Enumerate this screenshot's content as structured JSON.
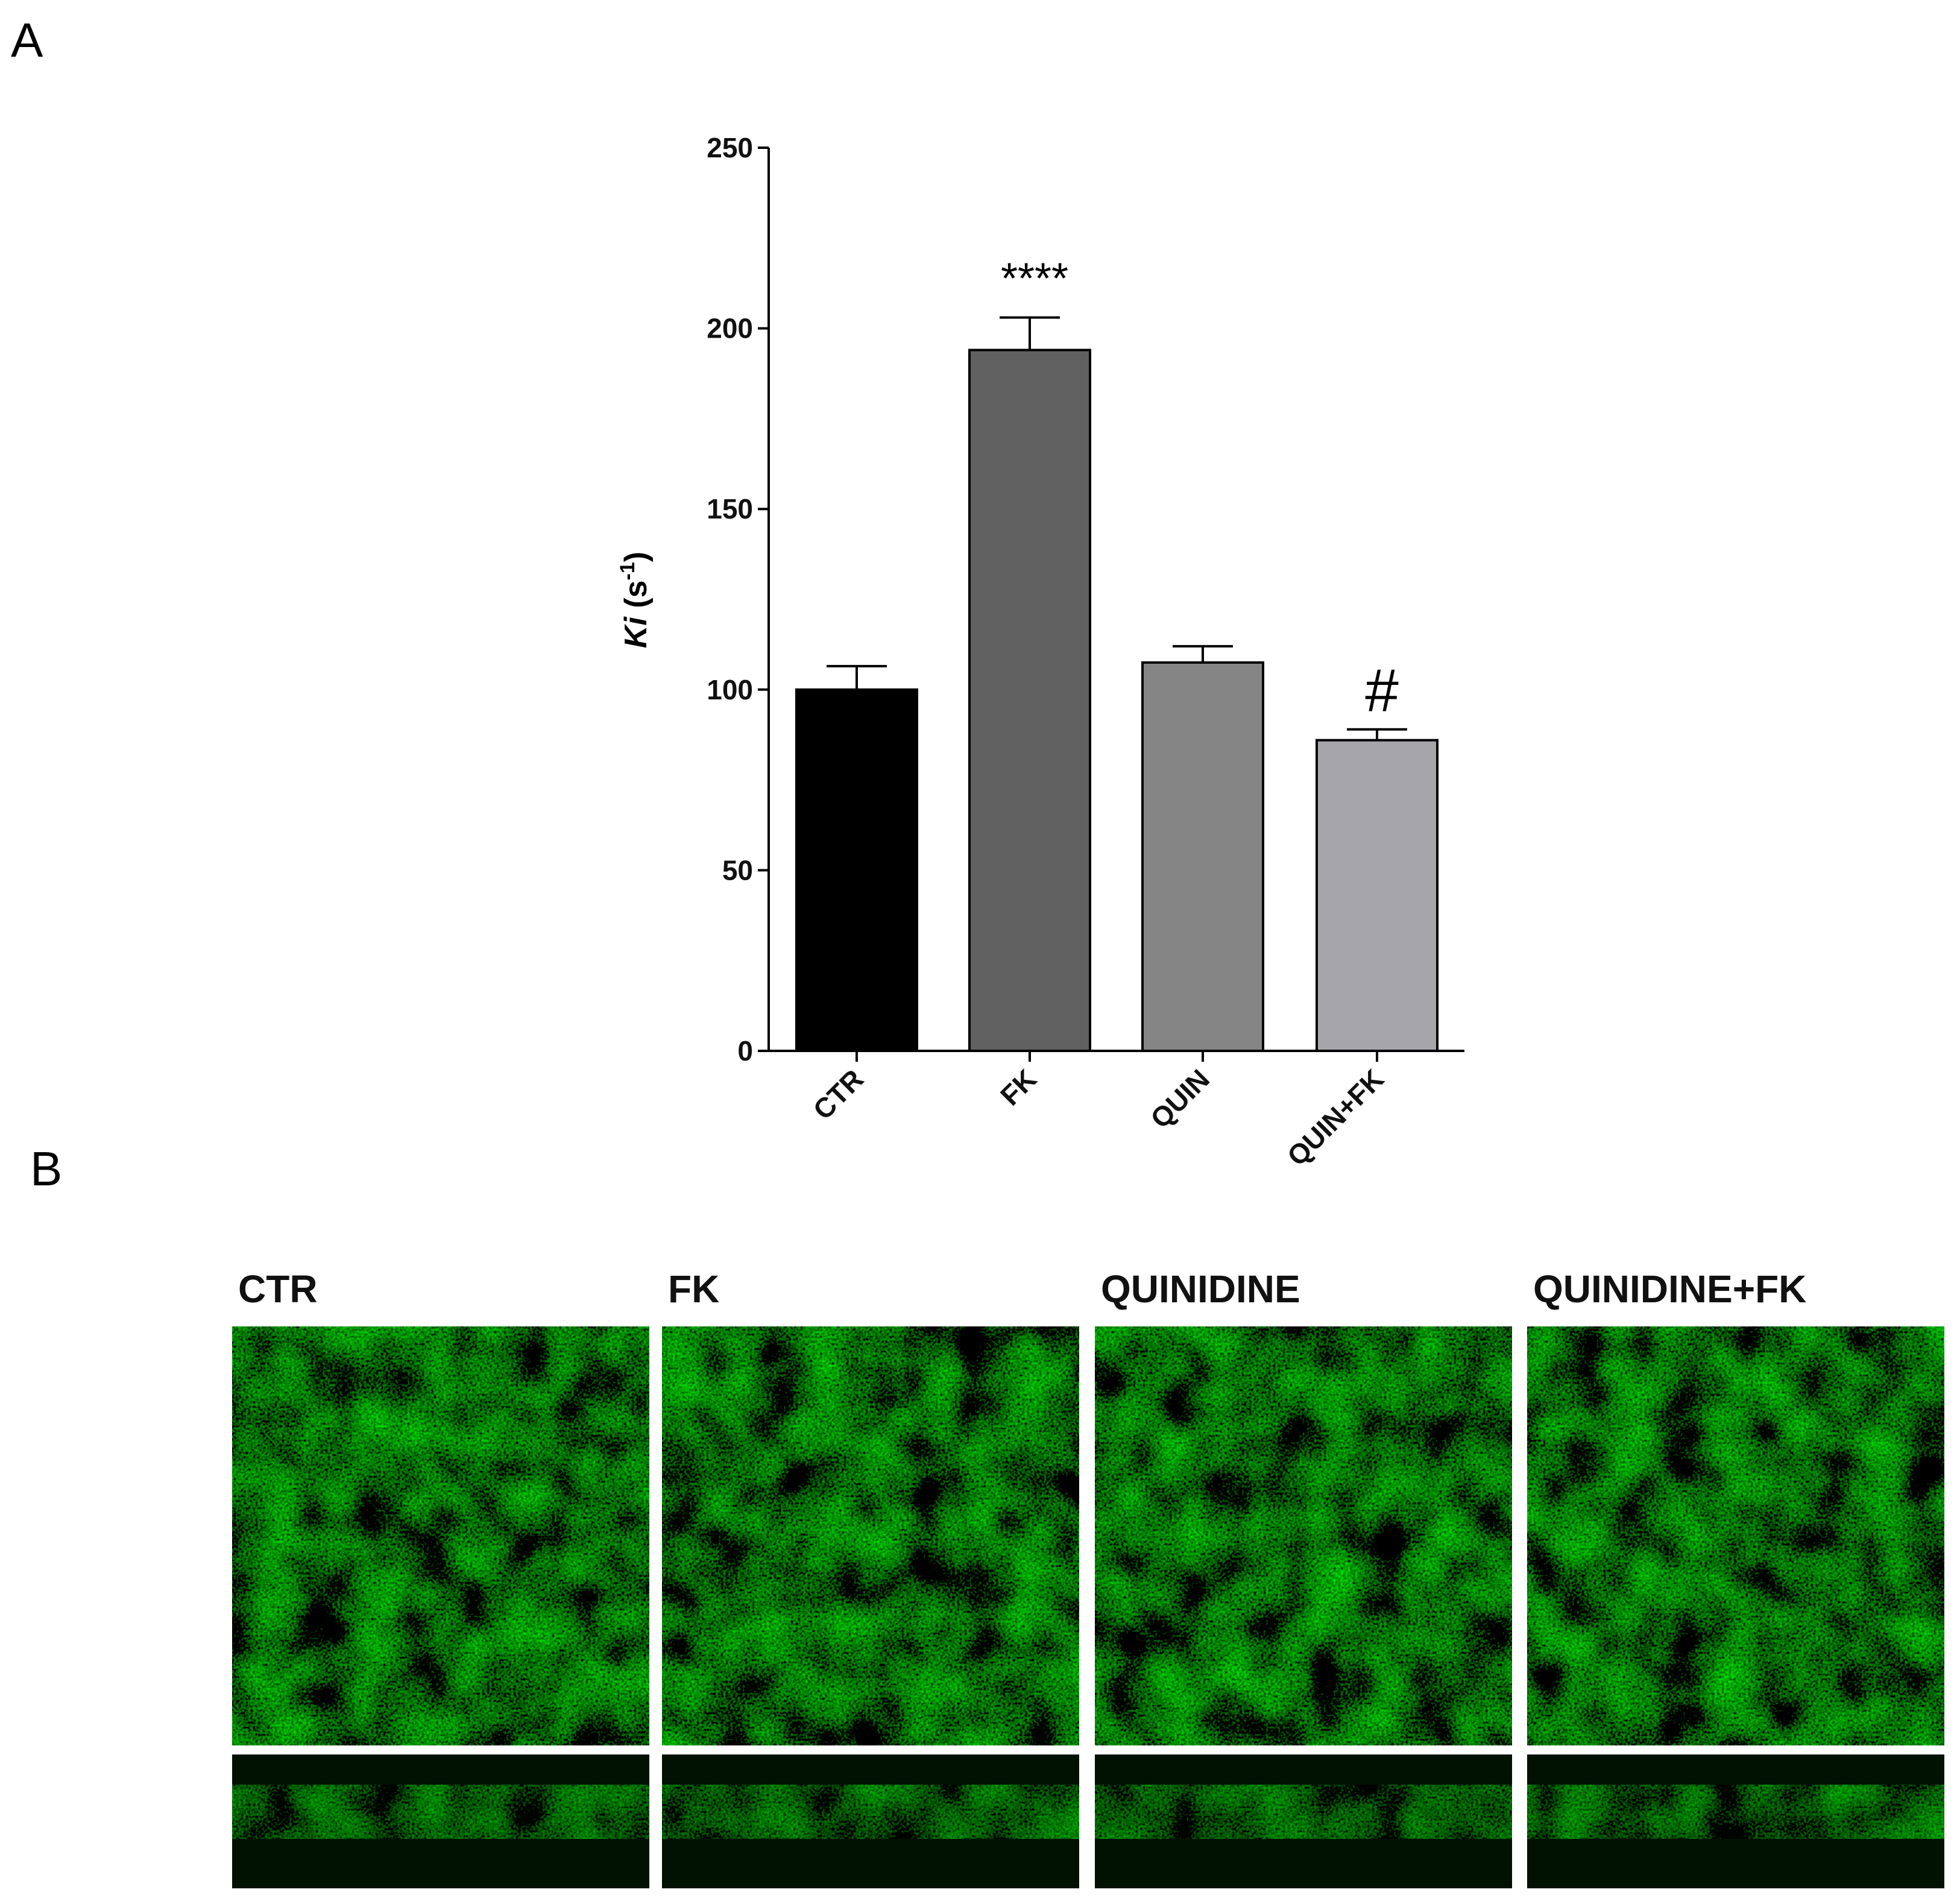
{
  "panel_labels": [
    "A",
    "B"
  ],
  "chart_data": {
    "type": "bar",
    "y_label_parts": [
      "Ki",
      " (s",
      "-1",
      ")"
    ],
    "categories": [
      "CTR",
      "FK",
      "QUIN",
      "QUIN+FK"
    ],
    "values": [
      100,
      194,
      107.5,
      86
    ],
    "errors": [
      6.5,
      9,
      4.5,
      3
    ],
    "colors": [
      "#000000",
      "#606060",
      "#858585",
      "#a6a5aa"
    ],
    "annotations": [
      "",
      "****",
      "",
      "#"
    ],
    "ylim": [
      0,
      250
    ],
    "yticks": [
      0,
      50,
      100,
      150,
      200,
      250
    ],
    "grid": false
  },
  "panel_b": {
    "titles": [
      "CTR",
      "FK",
      "QUINIDINE",
      "QUINIDINE+FK"
    ]
  }
}
